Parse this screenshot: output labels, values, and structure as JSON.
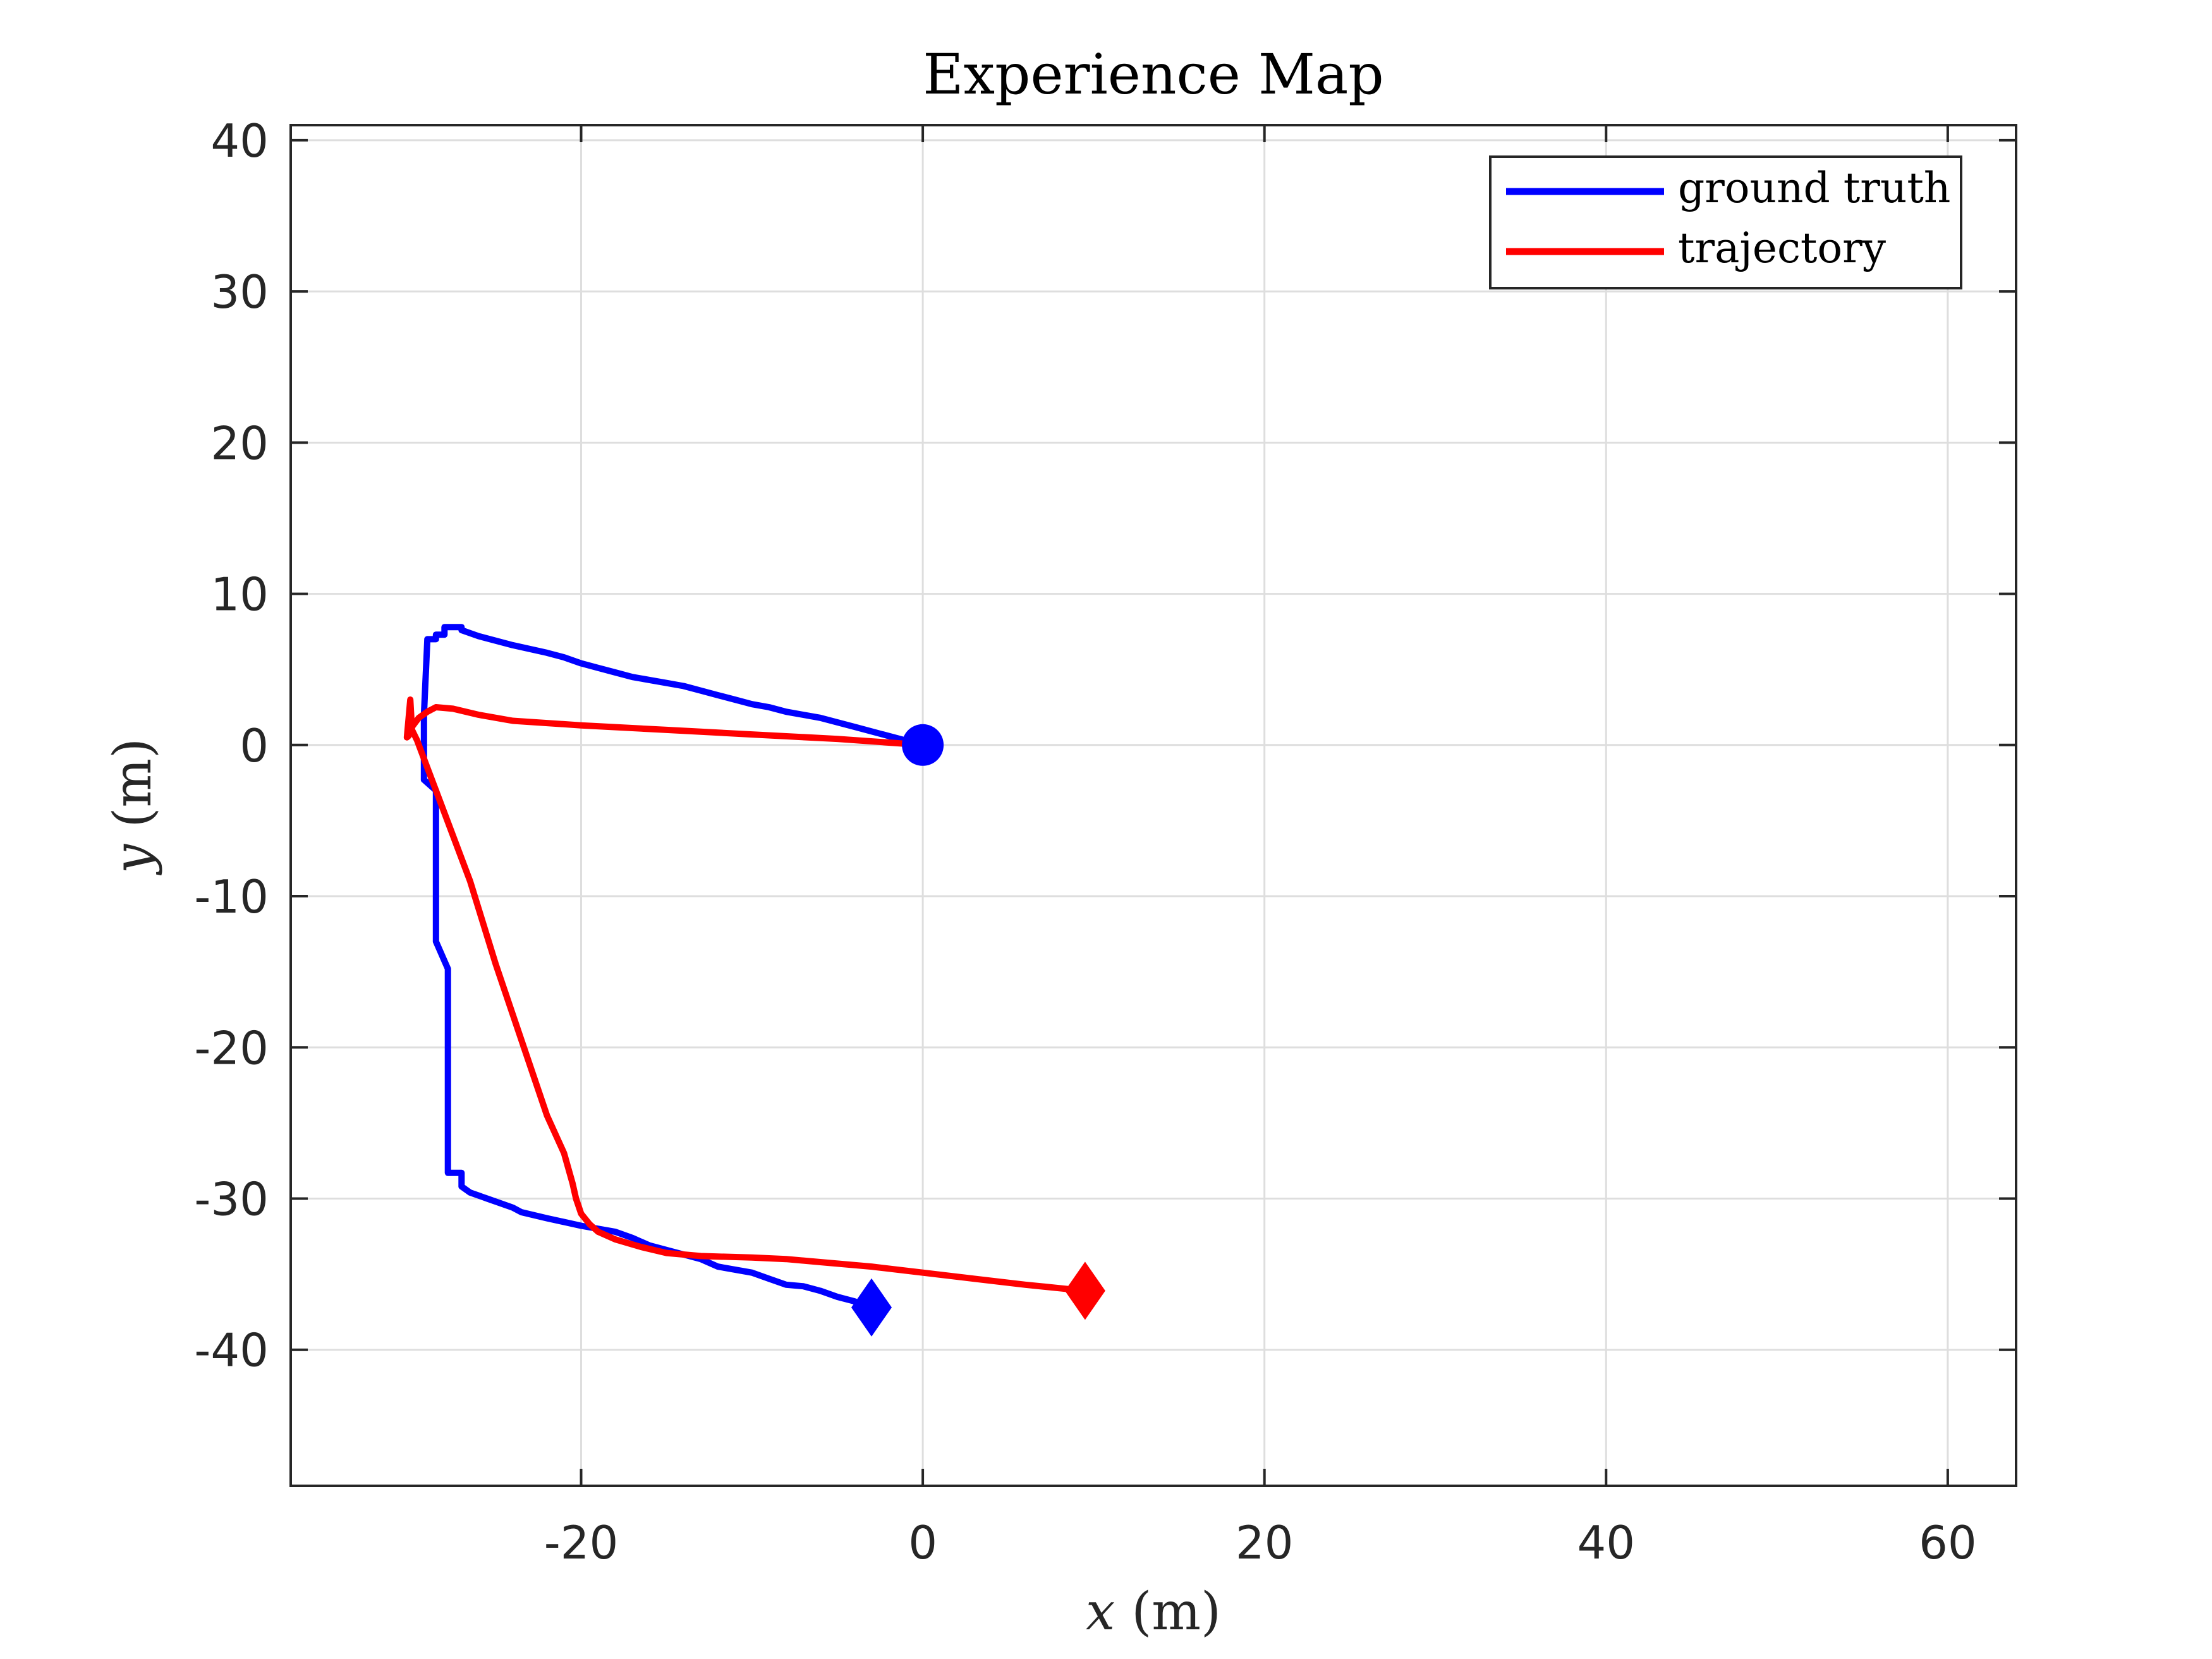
{
  "chart_data": {
    "type": "line",
    "title": "Experience Map",
    "xlabel": "x (m)",
    "xlabel_var": "x",
    "xlabel_unit": " (m)",
    "ylabel": "y (m)",
    "ylabel_var": "y",
    "ylabel_unit": " (m)",
    "xlim": [
      -37,
      64
    ],
    "ylim": [
      -49,
      41
    ],
    "xticks": [
      -20,
      0,
      20,
      40,
      60
    ],
    "yticks": [
      -40,
      -30,
      -20,
      -10,
      0,
      10,
      20,
      30,
      40
    ],
    "xtick_labels": [
      "-20",
      "0",
      "20",
      "40",
      "60"
    ],
    "ytick_labels": [
      "-40",
      "-30",
      "-20",
      "-10",
      "0",
      "10",
      "20",
      "30",
      "40"
    ],
    "grid": true,
    "legend_position": "top-right",
    "series": [
      {
        "name": "ground truth",
        "color": "#0000ff",
        "x": [
          0,
          -2,
          -4,
          -6,
          -7,
          -8,
          -9,
          -10,
          -11,
          -12,
          -13,
          -14,
          -15,
          -16,
          -17,
          -18,
          -19,
          -20,
          -21,
          -22,
          -24,
          -26,
          -26.5,
          -27,
          -27,
          -28,
          -28,
          -28.5,
          -28.5,
          -29,
          -29.2,
          -29.2,
          -28.5,
          -28.5,
          -28.5,
          -27.8,
          -27.8,
          -27.8,
          -27,
          -27,
          -26.5,
          -25.5,
          -24,
          -23.5,
          -22,
          -20,
          -18,
          -17,
          -16,
          -15,
          -13,
          -12,
          -10,
          -9,
          -8,
          -7,
          -6,
          -5,
          -4,
          -3
        ],
        "y": [
          0,
          0.6,
          1.2,
          1.8,
          2.0,
          2.2,
          2.5,
          2.7,
          3.0,
          3.3,
          3.6,
          3.9,
          4.1,
          4.3,
          4.5,
          4.8,
          5.1,
          5.4,
          5.8,
          6.1,
          6.6,
          7.2,
          7.4,
          7.6,
          7.8,
          7.8,
          7.3,
          7.3,
          7.0,
          7.0,
          2.0,
          -2.3,
          -3.0,
          -8.0,
          -13.0,
          -14.8,
          -22.0,
          -28.3,
          -28.3,
          -29.2,
          -29.6,
          -30.0,
          -30.6,
          -30.9,
          -31.3,
          -31.8,
          -32.2,
          -32.6,
          -33.1,
          -33.4,
          -34.0,
          -34.5,
          -34.9,
          -35.3,
          -35.7,
          -35.8,
          -36.1,
          -36.5,
          -36.8,
          -37.2
        ]
      },
      {
        "name": "trajectory",
        "color": "#ff0000",
        "x": [
          0,
          -5,
          -10,
          -15,
          -20,
          -24,
          -26,
          -27.5,
          -28.5,
          -29,
          -29.5,
          -29.9,
          -30.1,
          -30.2,
          -30.0,
          -29.9,
          -29.6,
          -29.0,
          -28.0,
          -26.5,
          -25.0,
          -23.5,
          -22.0,
          -21.0,
          -20.5,
          -20.3,
          -20.0,
          -19.5,
          -19.0,
          -18.0,
          -16.5,
          -15.0,
          -13.0,
          -10.0,
          -8.0,
          -6.0,
          -3.0,
          0,
          3,
          6,
          9.5
        ],
        "y": [
          0,
          0.4,
          0.7,
          1.0,
          1.3,
          1.6,
          2.0,
          2.4,
          2.5,
          2.2,
          1.8,
          1.2,
          0.6,
          0.5,
          3.0,
          1.0,
          0.3,
          -1.5,
          -4.5,
          -9.0,
          -14.5,
          -19.5,
          -24.5,
          -27.0,
          -29.0,
          -30.0,
          -31.0,
          -31.7,
          -32.2,
          -32.7,
          -33.2,
          -33.6,
          -33.8,
          -33.9,
          -34.0,
          -34.2,
          -34.5,
          -34.9,
          -35.3,
          -35.7,
          -36.1
        ]
      }
    ],
    "markers": [
      {
        "series": "ground truth",
        "kind": "start",
        "shape": "circle",
        "x": 0,
        "y": 0,
        "color": "#0000ff"
      },
      {
        "series": "ground truth",
        "kind": "end",
        "shape": "diamond",
        "x": -3,
        "y": -37.2,
        "color": "#0000ff"
      },
      {
        "series": "trajectory",
        "kind": "end",
        "shape": "diamond",
        "x": 9.5,
        "y": -36.1,
        "color": "#ff0000"
      }
    ]
  }
}
